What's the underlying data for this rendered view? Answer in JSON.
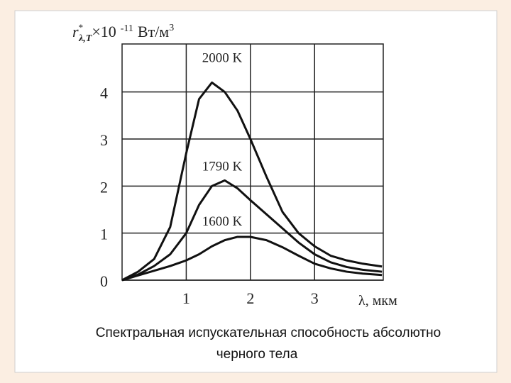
{
  "chart_data": {
    "type": "line",
    "y_label": {
      "symbol": "r",
      "superscript": "*",
      "subscript": "λ,T",
      "multiplier": "×10",
      "exponent": "-11",
      "unit": "Вт/м",
      "unit_power": "3"
    },
    "x_label": "λ, мкм",
    "caption": [
      "Спектральная испускательная способность абсолютно",
      "черного тела"
    ],
    "x": [
      0,
      0.25,
      0.5,
      0.75,
      1.0,
      1.2,
      1.4,
      1.6,
      1.8,
      2.0,
      2.25,
      2.5,
      2.75,
      3.0,
      3.25,
      3.5,
      3.75,
      4.05
    ],
    "series": [
      {
        "name": "2000 K",
        "color": "#111111",
        "values": [
          0,
          0.18,
          0.45,
          1.13,
          2.7,
          3.85,
          4.2,
          4.0,
          3.6,
          3.0,
          2.2,
          1.45,
          1.0,
          0.72,
          0.52,
          0.42,
          0.35,
          0.29
        ]
      },
      {
        "name": "1790 K",
        "color": "#111111",
        "values": [
          0,
          0.12,
          0.3,
          0.55,
          1.0,
          1.6,
          2.0,
          2.12,
          1.95,
          1.7,
          1.4,
          1.1,
          0.8,
          0.55,
          0.38,
          0.28,
          0.22,
          0.18
        ]
      },
      {
        "name": "1600 K",
        "color": "#111111",
        "values": [
          0,
          0.1,
          0.2,
          0.3,
          0.42,
          0.55,
          0.72,
          0.85,
          0.92,
          0.92,
          0.85,
          0.7,
          0.52,
          0.35,
          0.25,
          0.18,
          0.14,
          0.11
        ]
      }
    ],
    "xlim": [
      0,
      4.07
    ],
    "ylim": [
      0,
      5.02
    ],
    "xticks": [
      1,
      2,
      3
    ],
    "yticks": [
      0,
      1,
      2,
      3,
      4
    ],
    "grid": true
  }
}
